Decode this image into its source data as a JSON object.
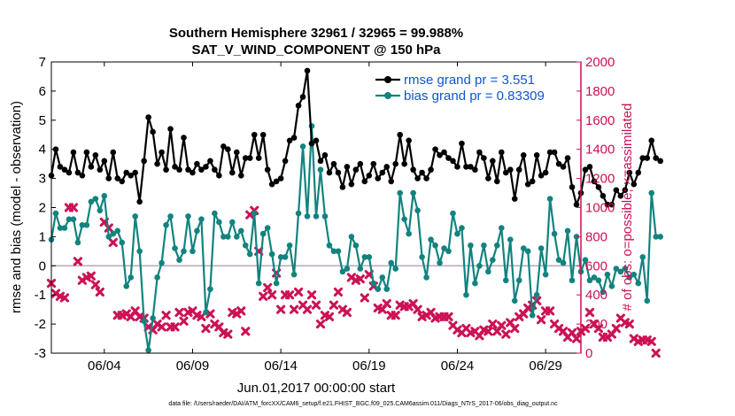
{
  "chart_data": {
    "type": "line",
    "title": "Southern Hemisphere 32961 / 32965 = 99.988%",
    "subtitle": "SAT_V_WIND_COMPONENT @ 150 hPa",
    "xlabel": "Jun.01,2017 00:00:00 start",
    "ylabel": "rmse and bias (model - observation)",
    "ylabel_right": "# of obs: o=possible; ×=assimilated",
    "footnote": "data file: /Users/raeder/DAI/ATM_forcXX/CAM6_setup/f.e21.FHIST_BGC.f09_025.CAM6assim.011/Diags_NTrS_2017-06/obs_diag_output.nc",
    "xlim": [
      1.0,
      31.0
    ],
    "ylim": [
      -3,
      7
    ],
    "ylim_right": [
      0,
      2000
    ],
    "x_ticks": [
      {
        "value": 4,
        "label": "06/04"
      },
      {
        "value": 9,
        "label": "06/09"
      },
      {
        "value": 14,
        "label": "06/14"
      },
      {
        "value": 19,
        "label": "06/19"
      },
      {
        "value": 24,
        "label": "06/24"
      },
      {
        "value": 29,
        "label": "06/29"
      }
    ],
    "y_ticks": [
      "-3",
      "-2",
      "-1",
      "0",
      "1",
      "2",
      "3",
      "4",
      "5",
      "6",
      "7"
    ],
    "y_ticks_right": [
      "0",
      "200",
      "400",
      "600",
      "800",
      "1000",
      "1200",
      "1400",
      "1600",
      "1800",
      "2000"
    ],
    "zero_line": 0,
    "grid": false,
    "legend_position": "top-right",
    "x_step_days": 0.25,
    "colors": {
      "rmse": "#000000",
      "bias": "#12837f",
      "obs": "#cc1155",
      "right_axis": "#cc1155",
      "legend_text": "#1155cc",
      "zero_line": "#b8a9b8"
    },
    "series": [
      {
        "name": "rmse grand pr = 3.551",
        "axis": "left",
        "values": [
          3.1,
          4.0,
          3.4,
          3.3,
          3.2,
          3.9,
          3.2,
          3.1,
          3.9,
          3.4,
          3.8,
          3.3,
          3.6,
          3.0,
          3.9,
          3.0,
          2.9,
          3.2,
          3.1,
          3.2,
          2.2,
          3.6,
          5.1,
          4.6,
          3.5,
          3.9,
          3.3,
          4.7,
          3.4,
          3.3,
          4.4,
          3.3,
          3.2,
          3.5,
          3.3,
          3.4,
          3.6,
          3.3,
          3.1,
          4.1,
          4.0,
          3.2,
          3.9,
          3.1,
          3.7,
          3.7,
          4.5,
          3.7,
          4.5,
          3.3,
          2.8,
          2.9,
          3.0,
          3.6,
          4.3,
          4.4,
          5.5,
          5.8,
          6.7,
          4.2,
          4.3,
          3.6,
          3.8,
          3.2,
          3.5,
          3.2,
          2.7,
          3.4,
          2.8,
          3.3,
          3.5,
          2.9,
          3.1,
          3.5,
          3.0,
          3.2,
          3.4,
          2.9,
          3.5,
          4.5,
          3.5,
          4.3,
          3.3,
          3.0,
          3.2,
          3.0,
          3.3,
          4.0,
          3.8,
          3.9,
          3.7,
          3.6,
          3.4,
          4.2,
          3.4,
          3.4,
          3.3,
          3.9,
          3.7,
          3.0,
          3.6,
          2.9,
          3.9,
          3.2,
          3.3,
          2.3,
          3.3,
          3.8,
          2.8,
          2.9,
          3.8,
          3.1,
          3.2,
          3.9,
          3.9,
          3.5,
          3.4,
          3.7,
          2.7,
          2.1,
          2.5,
          3.3,
          3.4,
          2.9,
          2.7,
          2.4,
          2.1,
          2.1,
          2.6,
          2.4,
          2.6,
          3.2,
          2.8,
          3.2,
          3.7,
          3.7,
          4.3,
          3.7,
          3.6
        ]
      },
      {
        "name": "bias grand pr = 0.83309",
        "axis": "left",
        "values": [
          0.9,
          1.8,
          1.3,
          1.3,
          1.6,
          1.6,
          0.8,
          1.4,
          1.4,
          2.2,
          2.3,
          1.9,
          2.4,
          1.0,
          1.1,
          1.2,
          0.8,
          -0.7,
          -0.4,
          1.7,
          0.5,
          -1.9,
          -2.9,
          -1.8,
          -0.4,
          0.1,
          1.4,
          1.7,
          0.6,
          0.2,
          0.5,
          1.7,
          0.5,
          1.2,
          1.6,
          -1.6,
          -0.8,
          1.8,
          1.5,
          1.0,
          1.0,
          1.5,
          1.0,
          1.2,
          0.7,
          0.4,
          1.8,
          -0.6,
          1.1,
          1.3,
          0.4,
          -0.6,
          0.3,
          0.3,
          0.7,
          -0.3,
          1.8,
          4.1,
          1.7,
          4.8,
          1.7,
          3.3,
          1.7,
          0.7,
          0.5,
          0.5,
          -0.2,
          -0.1,
          1.0,
          0.7,
          -0.1,
          0.3,
          0.3,
          -0.6,
          -0.8,
          -0.4,
          -0.8,
          0.1,
          -0.1,
          2.5,
          1.6,
          1.1,
          2.5,
          1.9,
          0.3,
          -0.4,
          0.9,
          0.7,
          0.1,
          0.6,
          0.5,
          1.8,
          1.1,
          1.3,
          -1.0,
          0.7,
          -0.6,
          0.0,
          0.7,
          -0.2,
          0.2,
          0.7,
          1.3,
          -0.5,
          0.9,
          -1.2,
          -0.5,
          0.6,
          0.5,
          -1.7,
          -1.0,
          0.6,
          -0.3,
          2.3,
          1.1,
          0.2,
          0.1,
          1.2,
          -0.5,
          1.0,
          -0.2,
          0.2,
          -0.5,
          -0.4,
          -0.5,
          -0.9,
          -0.3,
          -0.7,
          -0.1,
          -0.2,
          -0.1,
          -0.4,
          -0.3,
          -0.6,
          0.3,
          -1.2,
          2.5,
          1.0,
          1.0
        ]
      },
      {
        "name": "obs",
        "axis": "right",
        "values": [
          480,
          410,
          390,
          380,
          1000,
          1000,
          630,
          500,
          520,
          530,
          470,
          420,
          900,
          860,
          760,
          260,
          260,
          270,
          250,
          290,
          250,
          240,
          180,
          160,
          200,
          180,
          260,
          180,
          180,
          280,
          220,
          280,
          290,
          260,
          250,
          170,
          270,
          200,
          180,
          140,
          130,
          280,
          270,
          290,
          150,
          950,
          980,
          700,
          390,
          450,
          400,
          550,
          300,
          400,
          400,
          300,
          420,
          330,
          300,
          400,
          330,
          200,
          260,
          250,
          330,
          420,
          300,
          280,
          520,
          500,
          510,
          380,
          540,
          460,
          310,
          300,
          340,
          260,
          260,
          330,
          320,
          320,
          340,
          300,
          250,
          260,
          280,
          240,
          250,
          250,
          250,
          190,
          160,
          140,
          170,
          140,
          150,
          120,
          160,
          150,
          200,
          150,
          190,
          130,
          210,
          170,
          250,
          270,
          310,
          330,
          360,
          230,
          290,
          290,
          200,
          170,
          150,
          110,
          140,
          100,
          150,
          170,
          280,
          200,
          170,
          110,
          110,
          130,
          170,
          240,
          210,
          200,
          100,
          80,
          90,
          90,
          80,
          0
        ]
      }
    ]
  }
}
